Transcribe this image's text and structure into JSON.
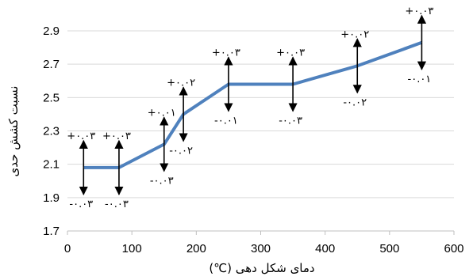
{
  "chart_data": {
    "type": "line",
    "xlabel": "دمای شکل دهی (℃)",
    "ylabel": "نسبت کشش حدی",
    "xlim": [
      0,
      600
    ],
    "ylim": [
      1.7,
      2.9
    ],
    "x_ticks": [
      "0",
      "100",
      "200",
      "300",
      "400",
      "500",
      "600"
    ],
    "y_ticks": [
      "1.7",
      "1.9",
      "2.1",
      "2.3",
      "2.5",
      "2.7",
      "2.9"
    ],
    "grid": "horizontal",
    "line_color": "#4f81bd",
    "series": [
      {
        "x": [
          25,
          80,
          150,
          180,
          250,
          350,
          450,
          550
        ],
        "y": [
          2.08,
          2.08,
          2.22,
          2.4,
          2.58,
          2.58,
          2.69,
          2.83
        ]
      }
    ],
    "error_bars": [
      {
        "x": 25,
        "y": 2.08,
        "upper": "+۰.۰۳",
        "lower": "-۰.۰۳"
      },
      {
        "x": 80,
        "y": 2.08,
        "upper": "+۰.۰۳",
        "lower": "-۰.۰۳"
      },
      {
        "x": 150,
        "y": 2.22,
        "upper": "+۰.۰۱",
        "lower": "-۰.۰۳"
      },
      {
        "x": 180,
        "y": 2.4,
        "upper": "+۰.۰۲",
        "lower": "-۰.۰۲"
      },
      {
        "x": 250,
        "y": 2.58,
        "upper": "+۰.۰۳",
        "lower": "-۰.۰۱"
      },
      {
        "x": 350,
        "y": 2.58,
        "upper": "+۰.۰۳",
        "lower": "-۰.۰۳"
      },
      {
        "x": 450,
        "y": 2.69,
        "upper": "+۰.۰۲",
        "lower": "-۰.۰۲"
      },
      {
        "x": 550,
        "y": 2.83,
        "upper": "+۰.۰۳",
        "lower": "-۰.۰۱"
      }
    ]
  }
}
